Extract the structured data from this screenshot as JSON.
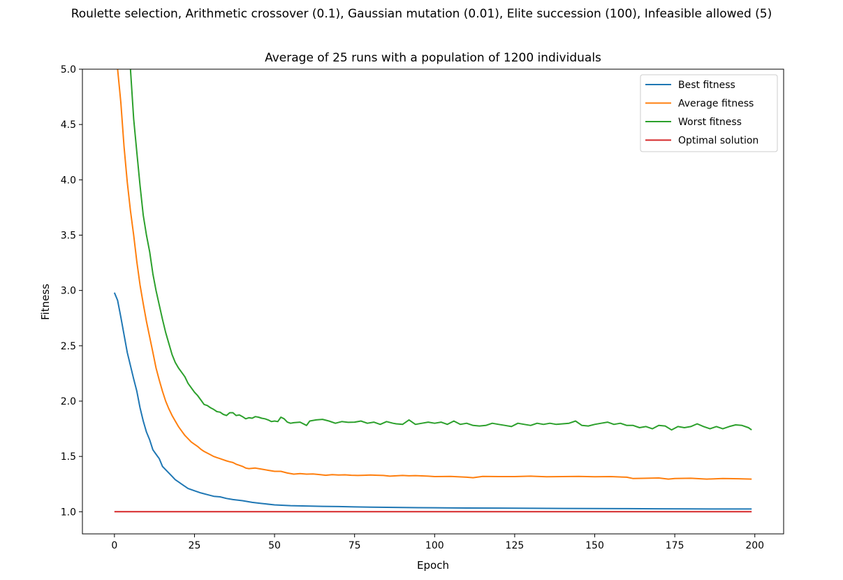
{
  "figure": {
    "suptitle": "Roulette selection, Arithmetic crossover (0.1), Gaussian mutation (0.01), Elite succession (100), Infeasible allowed (5)"
  },
  "chart_data": {
    "type": "line",
    "title": "Average of 25 runs with a population of 1200 individuals",
    "xlabel": "Epoch",
    "ylabel": "Fitness",
    "xlim": [
      -10,
      209
    ],
    "ylim": [
      0.8,
      5.0
    ],
    "xticks": [
      0,
      25,
      50,
      75,
      100,
      125,
      150,
      175,
      200
    ],
    "yticks": [
      1.0,
      1.5,
      2.0,
      2.5,
      3.0,
      3.5,
      4.0,
      4.5,
      5.0
    ],
    "ytick_labels": [
      "1.0",
      "1.5",
      "2.0",
      "2.5",
      "3.0",
      "3.5",
      "4.0",
      "4.5",
      "5.0"
    ],
    "grid": false,
    "legend_position": "top-right",
    "series": [
      {
        "name": "Best fitness",
        "color": "#1f77b4",
        "points": [
          [
            0,
            2.98
          ],
          [
            1,
            2.91
          ],
          [
            2,
            2.76
          ],
          [
            3,
            2.6
          ],
          [
            4,
            2.44
          ],
          [
            5,
            2.32
          ],
          [
            6,
            2.2
          ],
          [
            7,
            2.09
          ],
          [
            8,
            1.94
          ],
          [
            9,
            1.82
          ],
          [
            10,
            1.72
          ],
          [
            11,
            1.65
          ],
          [
            12,
            1.56
          ],
          [
            13,
            1.52
          ],
          [
            14,
            1.48
          ],
          [
            15,
            1.41
          ],
          [
            16,
            1.38
          ],
          [
            17,
            1.35
          ],
          [
            18,
            1.32
          ],
          [
            19,
            1.29
          ],
          [
            20,
            1.27
          ],
          [
            21,
            1.25
          ],
          [
            22,
            1.23
          ],
          [
            23,
            1.21
          ],
          [
            24,
            1.2
          ],
          [
            25,
            1.19
          ],
          [
            27,
            1.17
          ],
          [
            29,
            1.155
          ],
          [
            31,
            1.14
          ],
          [
            33,
            1.135
          ],
          [
            35,
            1.12
          ],
          [
            37,
            1.11
          ],
          [
            40,
            1.1
          ],
          [
            43,
            1.085
          ],
          [
            46,
            1.075
          ],
          [
            50,
            1.062
          ],
          [
            55,
            1.055
          ],
          [
            60,
            1.052
          ],
          [
            65,
            1.049
          ],
          [
            70,
            1.047
          ],
          [
            75,
            1.044
          ],
          [
            80,
            1.042
          ],
          [
            85,
            1.04
          ],
          [
            90,
            1.038
          ],
          [
            95,
            1.037
          ],
          [
            100,
            1.036
          ],
          [
            110,
            1.034
          ],
          [
            120,
            1.033
          ],
          [
            130,
            1.031
          ],
          [
            140,
            1.03
          ],
          [
            150,
            1.029
          ],
          [
            160,
            1.028
          ],
          [
            170,
            1.027
          ],
          [
            180,
            1.026
          ],
          [
            190,
            1.025
          ],
          [
            199,
            1.025
          ]
        ]
      },
      {
        "name": "Average fitness",
        "color": "#ff7f0e",
        "points": [
          [
            1,
            5.0
          ],
          [
            2,
            4.7
          ],
          [
            3,
            4.3
          ],
          [
            4,
            3.98
          ],
          [
            5,
            3.72
          ],
          [
            6,
            3.5
          ],
          [
            7,
            3.26
          ],
          [
            8,
            3.05
          ],
          [
            9,
            2.88
          ],
          [
            10,
            2.72
          ],
          [
            11,
            2.58
          ],
          [
            12,
            2.44
          ],
          [
            13,
            2.3
          ],
          [
            14,
            2.19
          ],
          [
            15,
            2.09
          ],
          [
            16,
            2.0
          ],
          [
            17,
            1.93
          ],
          [
            18,
            1.87
          ],
          [
            19,
            1.82
          ],
          [
            20,
            1.77
          ],
          [
            21,
            1.73
          ],
          [
            22,
            1.69
          ],
          [
            23,
            1.66
          ],
          [
            24,
            1.63
          ],
          [
            25,
            1.61
          ],
          [
            26,
            1.59
          ],
          [
            27,
            1.565
          ],
          [
            28,
            1.545
          ],
          [
            29,
            1.53
          ],
          [
            30,
            1.515
          ],
          [
            31,
            1.5
          ],
          [
            32,
            1.49
          ],
          [
            33,
            1.48
          ],
          [
            34,
            1.47
          ],
          [
            35,
            1.46
          ],
          [
            36,
            1.452
          ],
          [
            37,
            1.445
          ],
          [
            38,
            1.43
          ],
          [
            39,
            1.42
          ],
          [
            40,
            1.41
          ],
          [
            41,
            1.395
          ],
          [
            42,
            1.39
          ],
          [
            44,
            1.395
          ],
          [
            46,
            1.385
          ],
          [
            48,
            1.375
          ],
          [
            50,
            1.365
          ],
          [
            52,
            1.365
          ],
          [
            54,
            1.35
          ],
          [
            56,
            1.34
          ],
          [
            58,
            1.345
          ],
          [
            60,
            1.34
          ],
          [
            62,
            1.342
          ],
          [
            64,
            1.336
          ],
          [
            66,
            1.33
          ],
          [
            68,
            1.335
          ],
          [
            70,
            1.332
          ],
          [
            72,
            1.334
          ],
          [
            74,
            1.33
          ],
          [
            76,
            1.328
          ],
          [
            78,
            1.33
          ],
          [
            80,
            1.332
          ],
          [
            82,
            1.33
          ],
          [
            84,
            1.328
          ],
          [
            86,
            1.322
          ],
          [
            88,
            1.325
          ],
          [
            90,
            1.328
          ],
          [
            92,
            1.325
          ],
          [
            94,
            1.327
          ],
          [
            96,
            1.324
          ],
          [
            98,
            1.322
          ],
          [
            100,
            1.318
          ],
          [
            105,
            1.32
          ],
          [
            110,
            1.312
          ],
          [
            112,
            1.308
          ],
          [
            115,
            1.32
          ],
          [
            120,
            1.318
          ],
          [
            125,
            1.318
          ],
          [
            130,
            1.322
          ],
          [
            135,
            1.316
          ],
          [
            140,
            1.318
          ],
          [
            145,
            1.32
          ],
          [
            150,
            1.316
          ],
          [
            155,
            1.318
          ],
          [
            160,
            1.312
          ],
          [
            162,
            1.3
          ],
          [
            165,
            1.302
          ],
          [
            170,
            1.305
          ],
          [
            173,
            1.295
          ],
          [
            175,
            1.3
          ],
          [
            180,
            1.303
          ],
          [
            185,
            1.295
          ],
          [
            190,
            1.3
          ],
          [
            195,
            1.298
          ],
          [
            199,
            1.295
          ]
        ]
      },
      {
        "name": "Worst fitness",
        "color": "#2ca02c",
        "points": [
          [
            5,
            5.0
          ],
          [
            6,
            4.55
          ],
          [
            7,
            4.25
          ],
          [
            8,
            3.95
          ],
          [
            9,
            3.68
          ],
          [
            10,
            3.5
          ],
          [
            11,
            3.35
          ],
          [
            12,
            3.15
          ],
          [
            13,
            3.0
          ],
          [
            14,
            2.87
          ],
          [
            15,
            2.74
          ],
          [
            16,
            2.62
          ],
          [
            17,
            2.52
          ],
          [
            18,
            2.42
          ],
          [
            19,
            2.35
          ],
          [
            20,
            2.3
          ],
          [
            21,
            2.26
          ],
          [
            22,
            2.22
          ],
          [
            23,
            2.16
          ],
          [
            24,
            2.12
          ],
          [
            25,
            2.08
          ],
          [
            26,
            2.05
          ],
          [
            27,
            2.01
          ],
          [
            28,
            1.97
          ],
          [
            29,
            1.96
          ],
          [
            30,
            1.94
          ],
          [
            31,
            1.925
          ],
          [
            32,
            1.905
          ],
          [
            33,
            1.9
          ],
          [
            34,
            1.88
          ],
          [
            35,
            1.87
          ],
          [
            36,
            1.895
          ],
          [
            37,
            1.895
          ],
          [
            38,
            1.87
          ],
          [
            39,
            1.875
          ],
          [
            40,
            1.86
          ],
          [
            41,
            1.84
          ],
          [
            42,
            1.85
          ],
          [
            43,
            1.845
          ],
          [
            44,
            1.86
          ],
          [
            45,
            1.855
          ],
          [
            46,
            1.845
          ],
          [
            47,
            1.84
          ],
          [
            48,
            1.83
          ],
          [
            49,
            1.815
          ],
          [
            50,
            1.82
          ],
          [
            51,
            1.815
          ],
          [
            52,
            1.855
          ],
          [
            53,
            1.84
          ],
          [
            54,
            1.81
          ],
          [
            55,
            1.8
          ],
          [
            56,
            1.805
          ],
          [
            58,
            1.81
          ],
          [
            60,
            1.78
          ],
          [
            61,
            1.82
          ],
          [
            63,
            1.83
          ],
          [
            65,
            1.835
          ],
          [
            67,
            1.82
          ],
          [
            69,
            1.8
          ],
          [
            71,
            1.815
          ],
          [
            73,
            1.808
          ],
          [
            75,
            1.81
          ],
          [
            77,
            1.82
          ],
          [
            79,
            1.8
          ],
          [
            81,
            1.81
          ],
          [
            83,
            1.79
          ],
          [
            85,
            1.815
          ],
          [
            87,
            1.8
          ],
          [
            88,
            1.795
          ],
          [
            90,
            1.79
          ],
          [
            92,
            1.83
          ],
          [
            94,
            1.79
          ],
          [
            96,
            1.8
          ],
          [
            98,
            1.81
          ],
          [
            100,
            1.8
          ],
          [
            102,
            1.81
          ],
          [
            104,
            1.79
          ],
          [
            106,
            1.82
          ],
          [
            108,
            1.79
          ],
          [
            110,
            1.8
          ],
          [
            112,
            1.78
          ],
          [
            114,
            1.775
          ],
          [
            116,
            1.78
          ],
          [
            118,
            1.8
          ],
          [
            120,
            1.79
          ],
          [
            122,
            1.78
          ],
          [
            124,
            1.77
          ],
          [
            126,
            1.8
          ],
          [
            128,
            1.79
          ],
          [
            130,
            1.78
          ],
          [
            132,
            1.8
          ],
          [
            134,
            1.79
          ],
          [
            136,
            1.8
          ],
          [
            138,
            1.79
          ],
          [
            140,
            1.795
          ],
          [
            142,
            1.8
          ],
          [
            144,
            1.82
          ],
          [
            146,
            1.78
          ],
          [
            148,
            1.775
          ],
          [
            150,
            1.79
          ],
          [
            152,
            1.8
          ],
          [
            154,
            1.81
          ],
          [
            156,
            1.79
          ],
          [
            158,
            1.8
          ],
          [
            160,
            1.78
          ],
          [
            162,
            1.78
          ],
          [
            164,
            1.76
          ],
          [
            166,
            1.77
          ],
          [
            168,
            1.75
          ],
          [
            170,
            1.78
          ],
          [
            172,
            1.775
          ],
          [
            174,
            1.74
          ],
          [
            176,
            1.77
          ],
          [
            178,
            1.76
          ],
          [
            180,
            1.77
          ],
          [
            182,
            1.795
          ],
          [
            184,
            1.77
          ],
          [
            186,
            1.75
          ],
          [
            188,
            1.77
          ],
          [
            190,
            1.75
          ],
          [
            192,
            1.77
          ],
          [
            194,
            1.785
          ],
          [
            196,
            1.78
          ],
          [
            198,
            1.76
          ],
          [
            199,
            1.74
          ]
        ]
      },
      {
        "name": "Optimal solution",
        "color": "#d62728",
        "points": [
          [
            0,
            1.0
          ],
          [
            199,
            1.0
          ]
        ]
      }
    ]
  }
}
